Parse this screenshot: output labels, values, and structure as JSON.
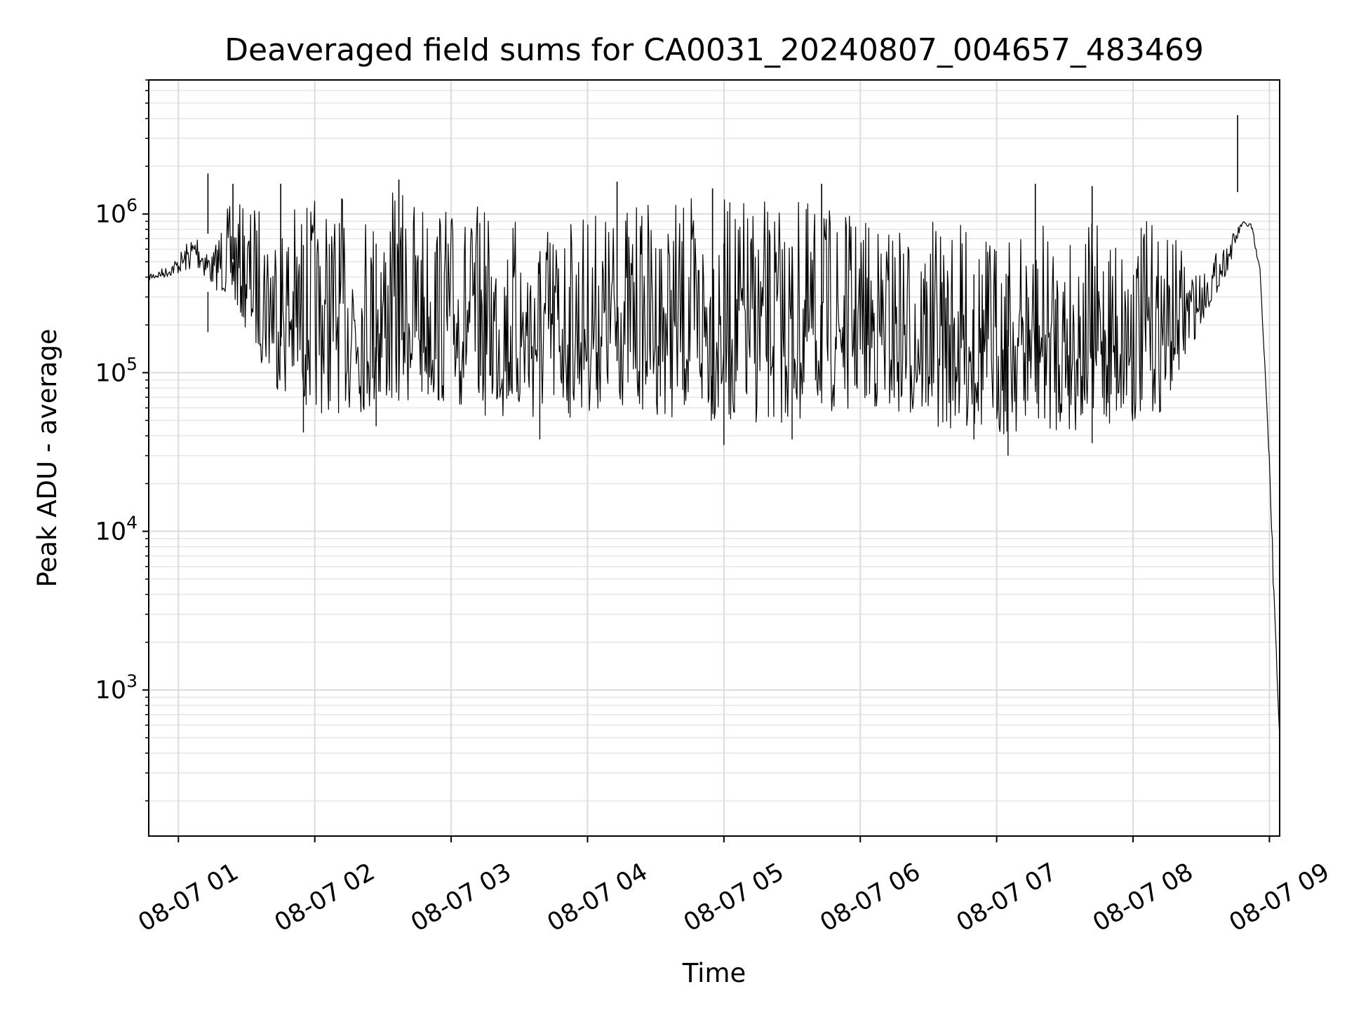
{
  "chart_data": {
    "type": "line",
    "title": "Deaveraged field sums for CA0031_20240807_004657_483469",
    "xlabel": "Time",
    "ylabel": "Peak ADU - average",
    "yscale": "log",
    "ylim": [
      120,
      7000000
    ],
    "xlim": [
      "2024-08-07T00:46:57",
      "2024-08-07T09:04:30"
    ],
    "grid": true,
    "line_color": "#000000",
    "x_ticks": [
      {
        "value": "2024-08-07T01:00:00",
        "label": "08-07 01"
      },
      {
        "value": "2024-08-07T02:00:00",
        "label": "08-07 02"
      },
      {
        "value": "2024-08-07T03:00:00",
        "label": "08-07 03"
      },
      {
        "value": "2024-08-07T04:00:00",
        "label": "08-07 04"
      },
      {
        "value": "2024-08-07T05:00:00",
        "label": "08-07 05"
      },
      {
        "value": "2024-08-07T06:00:00",
        "label": "08-07 06"
      },
      {
        "value": "2024-08-07T07:00:00",
        "label": "08-07 07"
      },
      {
        "value": "2024-08-07T08:00:00",
        "label": "08-07 08"
      },
      {
        "value": "2024-08-07T09:00:00",
        "label": "08-07 09"
      }
    ],
    "y_ticks": [
      {
        "value": 1000,
        "base": "10",
        "exp": "3"
      },
      {
        "value": 10000,
        "base": "10",
        "exp": "4"
      },
      {
        "value": 100000,
        "base": "10",
        "exp": "5"
      },
      {
        "value": 1000000,
        "base": "10",
        "exp": "6"
      }
    ],
    "series": [
      {
        "x": [
          "2024-08-07T00:46:57",
          "2024-08-07T00:55:00",
          "2024-08-07T01:00:00",
          "2024-08-07T01:08:00",
          "2024-08-07T01:15:00",
          "2024-08-07T01:20:00",
          "2024-08-07T01:25:00",
          "2024-08-07T01:40:00",
          "2024-08-07T01:50:00",
          "2024-08-07T02:00:00",
          "2024-08-07T02:30:00",
          "2024-08-07T02:40:00",
          "2024-08-07T03:00:00",
          "2024-08-07T03:35:00",
          "2024-08-07T04:00:00",
          "2024-08-07T04:15:00",
          "2024-08-07T05:00:00",
          "2024-08-07T05:30:00",
          "2024-08-07T06:00:00",
          "2024-08-07T06:30:00",
          "2024-08-07T07:00:00",
          "2024-08-07T07:30:00",
          "2024-08-07T08:00:00",
          "2024-08-07T08:15:00",
          "2024-08-07T08:30:00",
          "2024-08-07T08:42:00",
          "2024-08-07T08:48:00",
          "2024-08-07T08:52:00",
          "2024-08-07T08:56:00",
          "2024-08-07T09:00:00",
          "2024-08-07T09:02:00",
          "2024-08-07T09:04:30"
        ],
        "upper": [
          430000,
          470000,
          560000,
          850000,
          580000,
          1100000,
          1150000,
          1250000,
          1250000,
          1300000,
          1300000,
          1500000,
          1200000,
          1000000,
          1100000,
          1200000,
          1300000,
          1250000,
          1000000,
          900000,
          800000,
          900000,
          1000000,
          800000,
          450000,
          700000,
          900000,
          900000,
          450000,
          30000,
          5000,
          500
        ],
        "lower": [
          380000,
          400000,
          420000,
          450000,
          350000,
          300000,
          250000,
          90000,
          60000,
          55000,
          55000,
          60000,
          60000,
          45000,
          55000,
          60000,
          45000,
          45000,
          60000,
          45000,
          40000,
          42000,
          45000,
          60000,
          200000,
          450000,
          850000,
          800000,
          400000,
          25000,
          3000,
          500
        ]
      }
    ],
    "spikes": [
      {
        "x": "2024-08-07T01:13:00",
        "y": 1800000
      },
      {
        "x": "2024-08-07T01:24:00",
        "y": 1550000
      },
      {
        "x": "2024-08-07T01:45:00",
        "y": 1550000
      },
      {
        "x": "2024-08-07T02:37:00",
        "y": 1650000
      },
      {
        "x": "2024-08-07T04:13:00",
        "y": 1600000
      },
      {
        "x": "2024-08-07T04:55:00",
        "y": 1450000
      },
      {
        "x": "2024-08-07T05:43:00",
        "y": 1550000
      },
      {
        "x": "2024-08-07T07:17:00",
        "y": 1550000
      },
      {
        "x": "2024-08-07T07:42:00",
        "y": 1500000
      },
      {
        "x": "2024-08-07T08:46:00",
        "y": 4200000
      }
    ],
    "dips": [
      {
        "x": "2024-08-07T01:13:00",
        "y": 180000
      },
      {
        "x": "2024-08-07T01:55:00",
        "y": 42000
      },
      {
        "x": "2024-08-07T02:27:00",
        "y": 46000
      },
      {
        "x": "2024-08-07T03:39:00",
        "y": 38000
      },
      {
        "x": "2024-08-07T05:00:00",
        "y": 35000
      },
      {
        "x": "2024-08-07T05:30:00",
        "y": 38000
      },
      {
        "x": "2024-08-07T06:50:00",
        "y": 38000
      },
      {
        "x": "2024-08-07T07:05:00",
        "y": 30000
      },
      {
        "x": "2024-08-07T07:42:00",
        "y": 36000
      }
    ]
  }
}
